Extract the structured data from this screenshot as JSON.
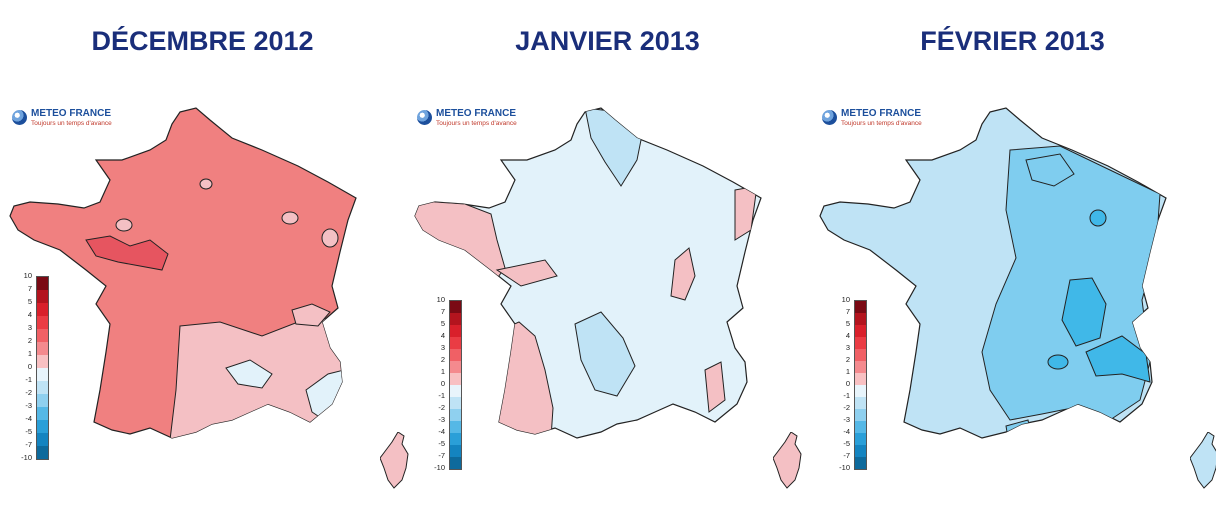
{
  "panels": [
    {
      "title": "DÉCEMBRE 2012",
      "logo": {
        "name": "METEO FRANCE",
        "tagline": "Toujours un temps d'avance"
      },
      "dominant_color": "#f08080",
      "secondary_color": "#f4c0c4",
      "accent_color": "#e65560"
    },
    {
      "title": "JANVIER 2013",
      "logo": {
        "name": "METEO FRANCE",
        "tagline": "Toujours un temps d'avance"
      },
      "dominant_color": "#e2f2fa",
      "secondary_color": "#f4c0c4",
      "accent_color": "#bfe3f5"
    },
    {
      "title": "FÉVRIER 2013",
      "logo": {
        "name": "METEO FRANCE",
        "tagline": "Toujours un temps d'avance"
      },
      "dominant_color": "#bfe3f5",
      "secondary_color": "#7fcdef",
      "accent_color": "#40b8e8"
    }
  ],
  "legend": {
    "labels": [
      "10",
      "7",
      "5",
      "4",
      "3",
      "2",
      "1",
      "0",
      "-1",
      "-2",
      "-3",
      "-4",
      "-5",
      "-7",
      "-10"
    ],
    "colors": [
      "#7a0a14",
      "#b3141e",
      "#d9202b",
      "#ea3c44",
      "#f06065",
      "#f48a8e",
      "#f8c0c2",
      "#e8f4fb",
      "#bfe3f5",
      "#8fd0ef",
      "#55b8e6",
      "#2a9fd8",
      "#1484c0",
      "#0e6a9c"
    ]
  }
}
